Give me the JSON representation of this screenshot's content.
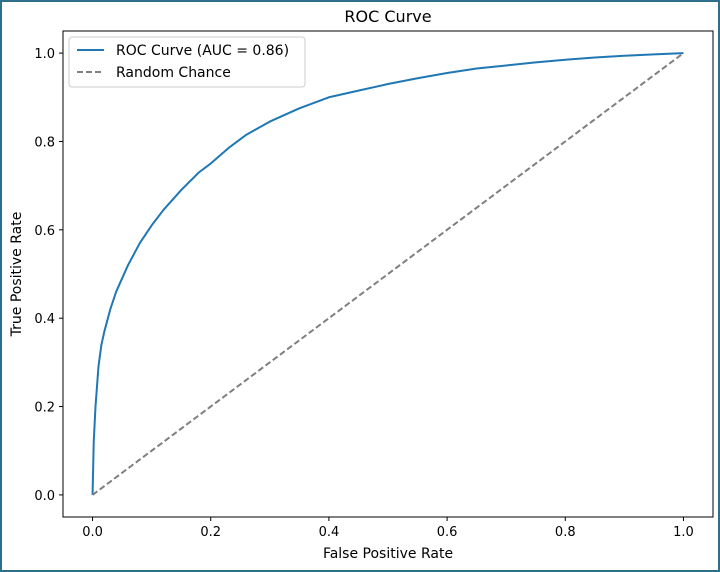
{
  "chart_data": {
    "type": "line",
    "title": "ROC Curve",
    "xlabel": "False Positive Rate",
    "ylabel": "True Positive Rate",
    "xlim": [
      -0.05,
      1.05
    ],
    "ylim": [
      -0.05,
      1.05
    ],
    "xticks": [
      0.0,
      0.2,
      0.4,
      0.6,
      0.8,
      1.0
    ],
    "yticks": [
      0.0,
      0.2,
      0.4,
      0.6,
      0.8,
      1.0
    ],
    "xtick_labels": [
      "0.0",
      "0.2",
      "0.4",
      "0.6",
      "0.8",
      "1.0"
    ],
    "ytick_labels": [
      "0.0",
      "0.2",
      "0.4",
      "0.6",
      "0.8",
      "1.0"
    ],
    "grid": false,
    "legend_position": "top-left",
    "series": [
      {
        "name": "ROC Curve (AUC = 0.86)",
        "style": "solid",
        "color": "#1f77b4",
        "x": [
          0.0,
          0.002,
          0.005,
          0.01,
          0.015,
          0.02,
          0.03,
          0.04,
          0.05,
          0.06,
          0.08,
          0.1,
          0.12,
          0.15,
          0.18,
          0.2,
          0.23,
          0.26,
          0.3,
          0.35,
          0.4,
          0.45,
          0.5,
          0.55,
          0.6,
          0.65,
          0.7,
          0.75,
          0.8,
          0.85,
          0.9,
          0.95,
          1.0
        ],
        "y": [
          0.0,
          0.12,
          0.2,
          0.29,
          0.34,
          0.37,
          0.42,
          0.46,
          0.49,
          0.52,
          0.57,
          0.61,
          0.645,
          0.69,
          0.73,
          0.75,
          0.785,
          0.815,
          0.845,
          0.875,
          0.9,
          0.915,
          0.93,
          0.943,
          0.955,
          0.965,
          0.972,
          0.979,
          0.985,
          0.99,
          0.994,
          0.997,
          1.0
        ]
      },
      {
        "name": "Random Chance",
        "style": "dashed",
        "color": "#7f7f7f",
        "x": [
          0.0,
          1.0
        ],
        "y": [
          0.0,
          1.0
        ]
      }
    ]
  }
}
